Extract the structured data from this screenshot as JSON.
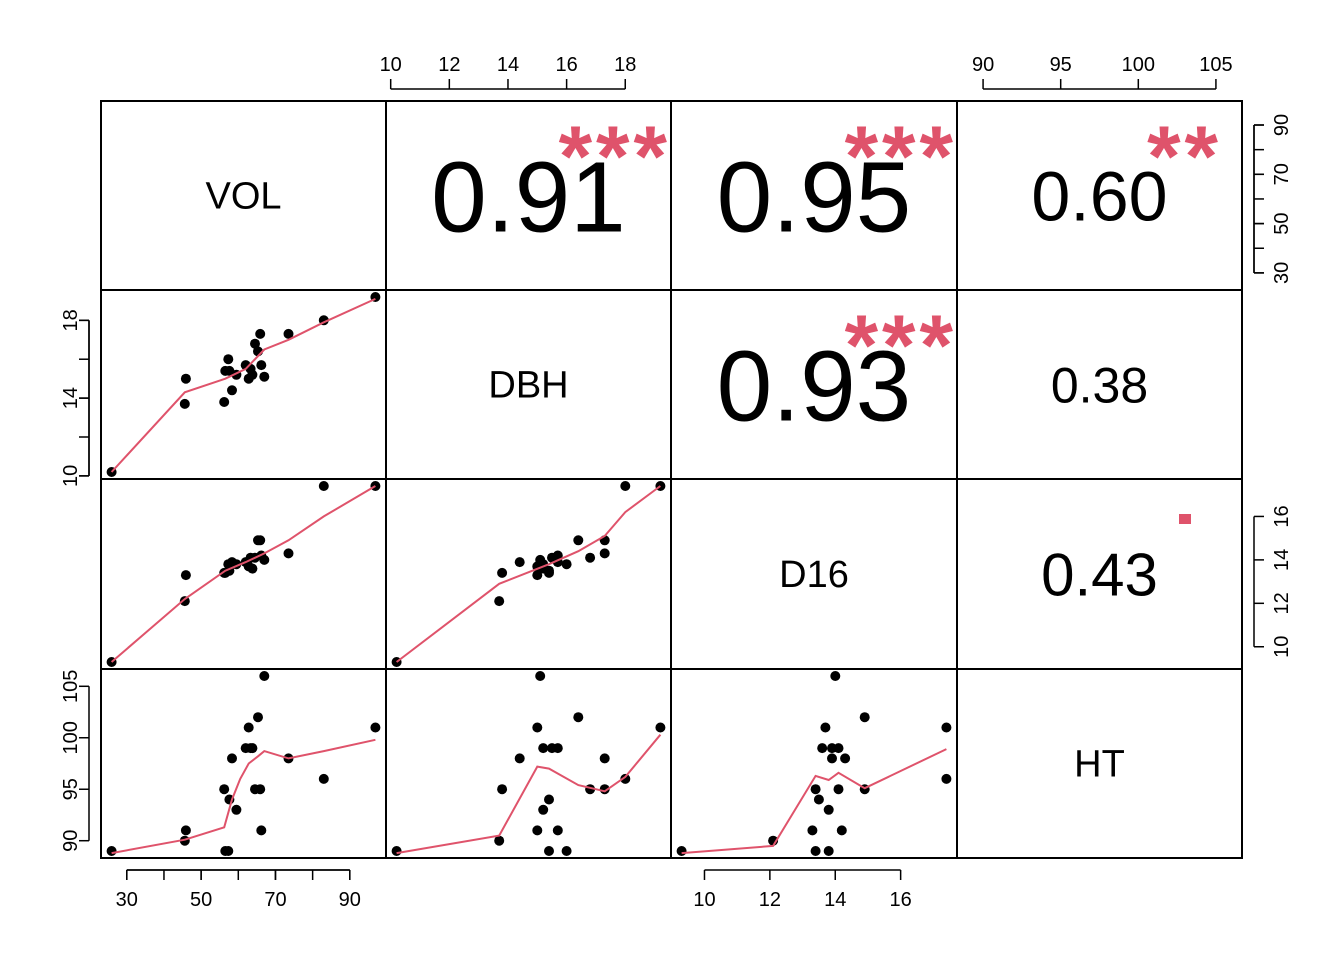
{
  "chart_data": {
    "type": "scatter",
    "title": "",
    "variables": [
      "VOL",
      "DBH",
      "D16",
      "HT"
    ],
    "data": {
      "VOL": [
        25.9,
        45.6,
        45.9,
        56.2,
        56.5,
        57.3,
        57.6,
        58.3,
        59.5,
        62.0,
        62.8,
        63.3,
        63.8,
        64.5,
        65.3,
        65.9,
        66.2,
        67.0,
        73.5,
        83.0,
        96.9
      ],
      "DBH": [
        10.2,
        13.7,
        15.0,
        13.8,
        15.4,
        16.0,
        15.4,
        14.4,
        15.2,
        15.7,
        15.0,
        15.5,
        15.2,
        16.8,
        16.4,
        17.3,
        15.7,
        15.1,
        17.3,
        18.0,
        19.2
      ],
      "D16": [
        9.3,
        12.1,
        13.3,
        13.4,
        13.4,
        13.8,
        13.5,
        13.9,
        13.8,
        13.9,
        13.7,
        14.1,
        13.6,
        14.1,
        14.9,
        14.9,
        14.2,
        14.0,
        14.3,
        17.4,
        17.4
      ],
      "HT": [
        89,
        90,
        91,
        95,
        89,
        89,
        94,
        98,
        93,
        99,
        101,
        99,
        99,
        95,
        102,
        95,
        91,
        106,
        98,
        96,
        101
      ]
    },
    "ranges": {
      "VOL": [
        25.9,
        96.9
      ],
      "DBH": [
        10.2,
        19.2
      ],
      "D16": [
        9.3,
        17.4
      ],
      "HT": [
        89,
        106
      ]
    },
    "ticks": {
      "VOL": [
        30,
        50,
        70,
        90
      ],
      "VOL_minor": [
        40,
        60,
        80
      ],
      "DBH": [
        10,
        12,
        14,
        16,
        18
      ],
      "DBH_left": [
        10,
        14,
        18
      ],
      "DBH_left_minor": [
        12,
        16
      ],
      "D16": [
        10,
        12,
        14,
        16
      ],
      "HT": [
        90,
        95,
        100,
        105
      ]
    },
    "right_axis_ticks": {
      "VOL": [
        30,
        50,
        70,
        90
      ],
      "VOL_minor": [
        40,
        60,
        80
      ],
      "D16": [
        10,
        12,
        14,
        16
      ]
    },
    "correlations": [
      {
        "row": 0,
        "col": 1,
        "value": "0.91",
        "stars": "***"
      },
      {
        "row": 0,
        "col": 2,
        "value": "0.95",
        "stars": "***"
      },
      {
        "row": 0,
        "col": 3,
        "value": "0.60",
        "stars": "**"
      },
      {
        "row": 1,
        "col": 2,
        "value": "0.93",
        "stars": "***"
      },
      {
        "row": 1,
        "col": 3,
        "value": "0.38",
        "stars": ""
      },
      {
        "row": 2,
        "col": 3,
        "value": "0.43",
        "stars": "."
      }
    ],
    "correlation_scale": [
      {
        "value": 0.38,
        "size": 50
      },
      {
        "value": 0.43,
        "size": 60
      },
      {
        "value": 0.6,
        "size": 70
      },
      {
        "value": 0.91,
        "size": 100
      },
      {
        "value": 0.93,
        "size": 100
      },
      {
        "value": 0.95,
        "size": 100
      }
    ],
    "smooth_lines": [
      {
        "row": 1,
        "col": 0,
        "points": [
          [
            25.9,
            10.2
          ],
          [
            45.6,
            14.3
          ],
          [
            56.5,
            15.0
          ],
          [
            62.0,
            15.5
          ],
          [
            67.0,
            16.5
          ],
          [
            73.5,
            17.0
          ],
          [
            83.0,
            17.9
          ],
          [
            96.9,
            19.1
          ]
        ]
      },
      {
        "row": 2,
        "col": 0,
        "points": [
          [
            25.9,
            9.3
          ],
          [
            45.6,
            12.2
          ],
          [
            56.5,
            13.5
          ],
          [
            62.0,
            13.9
          ],
          [
            67.0,
            14.3
          ],
          [
            73.5,
            14.9
          ],
          [
            83.0,
            16.0
          ],
          [
            96.9,
            17.4
          ]
        ]
      },
      {
        "row": 2,
        "col": 1,
        "points": [
          [
            10.2,
            9.3
          ],
          [
            13.7,
            12.9
          ],
          [
            15.4,
            13.8
          ],
          [
            16.4,
            14.4
          ],
          [
            17.3,
            15.1
          ],
          [
            18.0,
            16.2
          ],
          [
            19.2,
            17.4
          ]
        ]
      },
      {
        "row": 3,
        "col": 0,
        "points": [
          [
            25.9,
            88.8
          ],
          [
            45.6,
            90.1
          ],
          [
            56.2,
            91.3
          ],
          [
            58.3,
            94.0
          ],
          [
            60.5,
            96.0
          ],
          [
            62.8,
            97.5
          ],
          [
            65.3,
            98.2
          ],
          [
            67.0,
            98.7
          ],
          [
            73.5,
            98.0
          ],
          [
            83.0,
            98.7
          ],
          [
            96.9,
            99.8
          ]
        ]
      },
      {
        "row": 3,
        "col": 1,
        "points": [
          [
            10.2,
            88.8
          ],
          [
            13.7,
            90.5
          ],
          [
            15.0,
            97.2
          ],
          [
            15.4,
            97.0
          ],
          [
            16.4,
            95.4
          ],
          [
            17.0,
            95.0
          ],
          [
            17.3,
            94.8
          ],
          [
            18.0,
            96.2
          ],
          [
            19.2,
            100.3
          ]
        ]
      },
      {
        "row": 3,
        "col": 2,
        "points": [
          [
            9.3,
            88.8
          ],
          [
            12.1,
            89.5
          ],
          [
            13.4,
            96.3
          ],
          [
            13.8,
            95.9
          ],
          [
            14.1,
            96.6
          ],
          [
            14.9,
            95.1
          ],
          [
            17.4,
            98.9
          ]
        ]
      }
    ],
    "colors": {
      "points": "#000000",
      "smooth": "#DF536B",
      "stars": "#DF536B",
      "frame": "#000000"
    }
  }
}
